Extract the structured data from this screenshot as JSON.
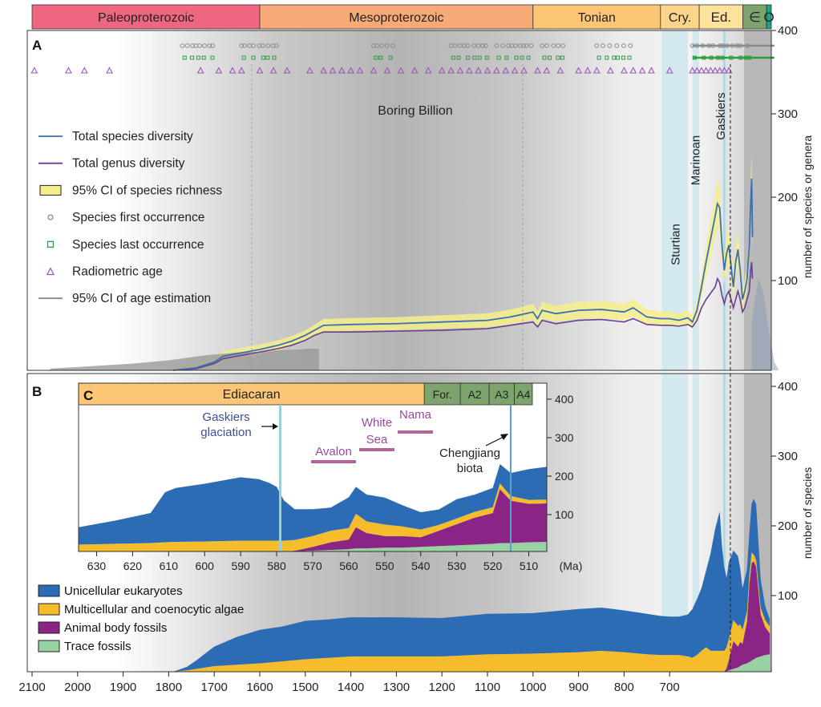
{
  "geologic_eras": [
    {
      "label": "Paleoproterozoic",
      "start": 2100,
      "end": 1600,
      "color": "#ee6680"
    },
    {
      "label": "Mesoproterozoic",
      "start": 1600,
      "end": 1000,
      "color": "#f7aa78"
    },
    {
      "label": "Tonian",
      "start": 1000,
      "end": 720,
      "color": "#fcc676"
    },
    {
      "label": "Cry.",
      "start": 720,
      "end": 635,
      "color": "#fcd48a"
    },
    {
      "label": "Ed.",
      "start": 635,
      "end": 539,
      "color": "#fde29b"
    },
    {
      "label": "∈",
      "start": 539,
      "end": 487,
      "color": "#7ca46c"
    },
    {
      "label": "O",
      "start": 487,
      "end": 455,
      "color": "#14a88a"
    }
  ],
  "panel_a": {
    "letter": "A",
    "annotation": "Boring Billion",
    "glaciations": [
      {
        "label": "Sturtian",
        "start": 717,
        "end": 660
      },
      {
        "label": "Marinoan",
        "start": 650,
        "end": 635
      },
      {
        "label": "Gaskiers",
        "start": 582,
        "end": 580
      }
    ],
    "legend": [
      {
        "label": "Total species diversity",
        "kind": "line",
        "color": "#3a6fb5"
      },
      {
        "label": "Total genus diversity",
        "kind": "line",
        "color": "#6a3d95"
      },
      {
        "label": "95% CI of species richness",
        "kind": "box",
        "color": "#f4ef88"
      },
      {
        "label": "Species first occurrence",
        "kind": "circle",
        "color": "#888888"
      },
      {
        "label": "Species last occurrence",
        "kind": "square",
        "color": "#2e9e3e"
      },
      {
        "label": "Radiometric age",
        "kind": "triangle",
        "color": "#9a55b8"
      },
      {
        "label": "95% CI of age estimation",
        "kind": "line",
        "color": "#8a8a8a"
      }
    ],
    "yaxis_label": "number of species or genera",
    "yticks": [
      100,
      200,
      300,
      400
    ]
  },
  "panel_b": {
    "letter": "B",
    "yaxis_label": "number of species",
    "yticks": [
      100,
      200,
      300,
      400
    ],
    "legend": [
      {
        "label": "Unicellular eukaryotes",
        "color": "#2c6cb4"
      },
      {
        "label": "Multicellular and coenocytic algae",
        "color": "#f5bd2c"
      },
      {
        "label": "Animal body fossils",
        "color": "#8b2585"
      },
      {
        "label": "Trace fossils",
        "color": "#99d2a2"
      }
    ]
  },
  "panel_c": {
    "letter": "C",
    "stages": [
      {
        "label": "Ediacaran",
        "color": "#fcc676"
      },
      {
        "label": "For.",
        "color": "#7ca46c"
      },
      {
        "label": "A2",
        "color": "#7ca46c"
      },
      {
        "label": "A3",
        "color": "#7ca46c"
      },
      {
        "label": "A4",
        "color": "#7ca46c"
      }
    ],
    "annotations": {
      "gaskiers": [
        "Gaskiers",
        "glaciation"
      ],
      "avalon": "Avalon",
      "white_sea": [
        "White",
        "Sea"
      ],
      "nama": "Nama",
      "chengjiang": [
        "Chengjiang",
        "biota"
      ]
    },
    "yticks": [
      100,
      200,
      300,
      400
    ],
    "xticks": [
      630,
      620,
      610,
      600,
      590,
      580,
      570,
      560,
      550,
      540,
      530,
      520,
      510
    ],
    "x_unit": "(Ma)"
  },
  "main_xaxis": {
    "ticks": [
      2100,
      2000,
      1900,
      1800,
      1700,
      1600,
      1500,
      1400,
      1300,
      1200,
      1100,
      1000,
      900,
      800,
      700
    ]
  },
  "chart_data": [
    {
      "type": "line",
      "panel": "A",
      "xlabel": "",
      "ylabel": "number of species or genera",
      "xlim": [
        2100,
        455
      ],
      "ylim": [
        0,
        420
      ],
      "series": [
        {
          "name": "Total species diversity",
          "color": "#3a6fb5",
          "x": [
            1790,
            1740,
            1700,
            1680,
            1650,
            1600,
            1560,
            1530,
            1500,
            1480,
            1460,
            1400,
            1300,
            1200,
            1100,
            1050,
            1000,
            990,
            980,
            950,
            900,
            850,
            800,
            780,
            750,
            720,
            700,
            680,
            660,
            650,
            640,
            630,
            620,
            600,
            595,
            590,
            585,
            580,
            575,
            570,
            560,
            555,
            550,
            545,
            540,
            535,
            530,
            525,
            522,
            520,
            518
          ],
          "y": [
            0,
            3,
            10,
            17,
            20,
            25,
            30,
            35,
            42,
            48,
            54,
            55,
            56,
            58,
            60,
            64,
            70,
            62,
            72,
            68,
            72,
            73,
            70,
            75,
            64,
            62,
            62,
            60,
            63,
            58,
            72,
            100,
            130,
            185,
            200,
            195,
            150,
            120,
            140,
            150,
            100,
            130,
            145,
            120,
            85,
            95,
            110,
            150,
            200,
            230,
            160
          ]
        },
        {
          "name": "Total genus diversity",
          "color": "#6a3d95",
          "x": [
            1790,
            1740,
            1700,
            1680,
            1650,
            1600,
            1560,
            1530,
            1500,
            1480,
            1460,
            1400,
            1300,
            1200,
            1100,
            1050,
            1000,
            990,
            980,
            950,
            900,
            850,
            800,
            780,
            750,
            720,
            700,
            680,
            660,
            650,
            640,
            630,
            620,
            600,
            595,
            590,
            585,
            580,
            575,
            570,
            560,
            555,
            550,
            545,
            540,
            535,
            530,
            525,
            522,
            520,
            518
          ],
          "y": [
            0,
            2,
            8,
            14,
            17,
            22,
            26,
            30,
            36,
            42,
            46,
            46,
            47,
            48,
            50,
            54,
            58,
            52,
            60,
            56,
            60,
            61,
            58,
            62,
            55,
            54,
            54,
            53,
            55,
            52,
            60,
            75,
            85,
            100,
            110,
            105,
            90,
            80,
            90,
            95,
            75,
            85,
            95,
            85,
            70,
            75,
            85,
            95,
            120,
            130,
            110
          ]
        }
      ]
    },
    {
      "type": "area",
      "panel": "B",
      "stacked": true,
      "xlabel": "",
      "ylabel": "number of species",
      "xlim": [
        2100,
        455
      ],
      "ylim": [
        0,
        420
      ],
      "x": [
        1790,
        1760,
        1740,
        1700,
        1650,
        1600,
        1550,
        1500,
        1450,
        1400,
        1300,
        1200,
        1100,
        1000,
        900,
        850,
        800,
        750,
        720,
        700,
        680,
        660,
        650,
        640,
        630,
        620,
        610,
        600,
        590,
        585,
        580,
        575,
        570,
        560,
        550,
        545,
        540,
        530,
        525,
        520,
        515,
        510,
        500,
        490,
        480
      ],
      "series": [
        {
          "name": "Trace fossils",
          "color": "#99d2a2",
          "values": [
            0,
            0,
            0,
            0,
            0,
            0,
            0,
            0,
            0,
            0,
            0,
            0,
            0,
            0,
            0,
            0,
            0,
            0,
            0,
            0,
            0,
            0,
            0,
            0,
            0,
            0,
            0,
            0,
            0,
            0,
            0,
            0,
            2,
            4,
            6,
            8,
            10,
            12,
            14,
            16,
            18,
            20,
            22,
            24,
            25
          ]
        },
        {
          "name": "Animal body fossils",
          "color": "#8b2585",
          "values": [
            0,
            0,
            0,
            0,
            0,
            0,
            0,
            0,
            0,
            0,
            0,
            0,
            0,
            0,
            0,
            0,
            0,
            0,
            0,
            0,
            0,
            0,
            0,
            0,
            0,
            0,
            0,
            0,
            0,
            0,
            0,
            5,
            15,
            40,
            30,
            35,
            30,
            60,
            110,
            140,
            140,
            130,
            60,
            40,
            30
          ]
        },
        {
          "name": "Multicellular and coenocytic algae",
          "color": "#f5bd2c",
          "values": [
            0,
            2,
            4,
            8,
            10,
            12,
            15,
            18,
            20,
            22,
            22,
            22,
            25,
            26,
            28,
            30,
            28,
            25,
            24,
            24,
            24,
            22,
            20,
            24,
            30,
            35,
            30,
            30,
            30,
            30,
            30,
            30,
            30,
            30,
            30,
            25,
            20,
            15,
            15,
            15,
            10,
            10,
            10,
            10,
            10
          ]
        },
        {
          "name": "Unicellular eukaryotes",
          "color": "#2c6cb4",
          "values": [
            0,
            5,
            12,
            28,
            40,
            48,
            50,
            55,
            55,
            56,
            56,
            55,
            58,
            58,
            62,
            62,
            60,
            58,
            56,
            55,
            55,
            60,
            70,
            80,
            90,
            110,
            140,
            175,
            200,
            150,
            120,
            100,
            110,
            100,
            100,
            80,
            60,
            60,
            60,
            70,
            80,
            80,
            40,
            20,
            10
          ]
        }
      ]
    },
    {
      "type": "area",
      "panel": "C",
      "stacked": true,
      "xlabel": "(Ma)",
      "ylabel": "",
      "xlim": [
        635,
        505
      ],
      "ylim": [
        0,
        420
      ],
      "x": [
        635,
        625,
        615,
        611,
        608,
        600,
        590,
        585,
        582,
        580,
        578,
        575,
        570,
        565,
        560,
        558,
        555,
        550,
        545,
        540,
        535,
        530,
        525,
        520,
        518,
        515,
        510,
        505
      ],
      "series": [
        {
          "name": "Trace fossils",
          "color": "#99d2a2",
          "values": [
            0,
            0,
            0,
            0,
            0,
            0,
            0,
            0,
            0,
            0,
            0,
            0,
            2,
            4,
            6,
            8,
            8,
            10,
            10,
            12,
            14,
            16,
            18,
            20,
            22,
            22,
            24,
            25
          ]
        },
        {
          "name": "Animal body fossils",
          "color": "#8b2585",
          "values": [
            0,
            0,
            0,
            0,
            0,
            0,
            0,
            0,
            0,
            0,
            0,
            2,
            10,
            20,
            25,
            55,
            40,
            30,
            30,
            25,
            40,
            55,
            70,
            80,
            140,
            110,
            100,
            100
          ]
        },
        {
          "name": "Multicellular and coenocytic algae",
          "color": "#f5bd2c",
          "values": [
            18,
            20,
            22,
            24,
            25,
            26,
            28,
            28,
            28,
            28,
            28,
            28,
            28,
            30,
            30,
            35,
            30,
            30,
            25,
            20,
            15,
            15,
            15,
            15,
            15,
            12,
            10,
            10
          ]
        },
        {
          "name": "Unicellular eukaryotes",
          "color": "#2c6cb4",
          "values": [
            45,
            60,
            78,
            130,
            140,
            150,
            165,
            160,
            150,
            140,
            105,
            80,
            70,
            60,
            80,
            70,
            70,
            70,
            55,
            45,
            40,
            50,
            45,
            50,
            50,
            60,
            80,
            85
          ]
        }
      ]
    }
  ]
}
